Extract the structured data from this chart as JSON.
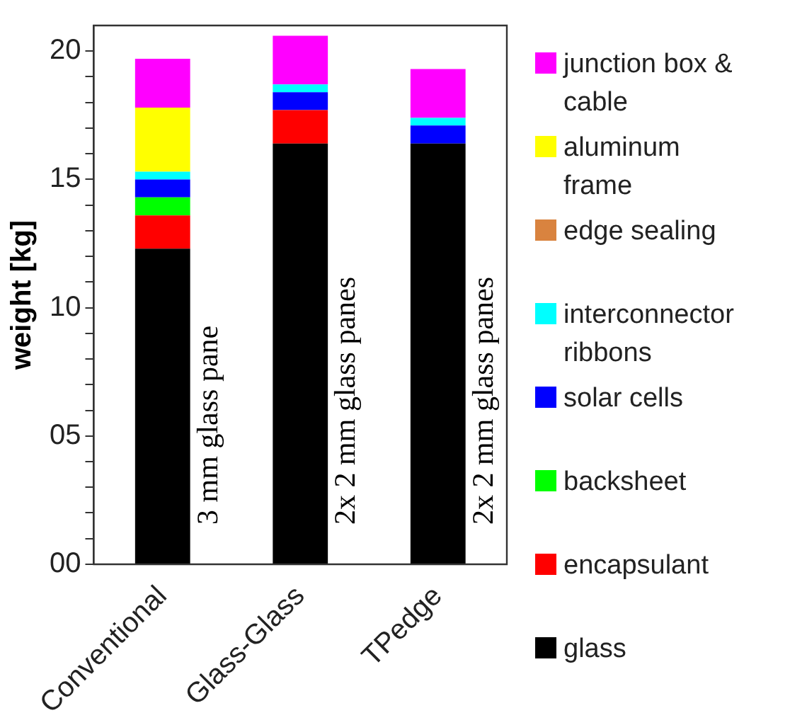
{
  "chart_data": {
    "type": "bar",
    "stacked": true,
    "ylabel": "weight [kg]",
    "categories": [
      "Conventional",
      "Glass-Glass",
      "TPedge"
    ],
    "series": [
      {
        "name": "glass",
        "color": "#000000",
        "values": [
          12.3,
          16.4,
          16.4
        ]
      },
      {
        "name": "encapsulant",
        "color": "#ff0000",
        "values": [
          1.3,
          1.3,
          0
        ]
      },
      {
        "name": "backsheet",
        "color": "#00ff00",
        "values": [
          0.7,
          0,
          0
        ]
      },
      {
        "name": "solar cells",
        "color": "#0000ff",
        "values": [
          0.7,
          0.7,
          0.7
        ]
      },
      {
        "name": "interconnector ribbons",
        "color": "#00ffff",
        "values": [
          0.3,
          0.3,
          0.3
        ]
      },
      {
        "name": "edge sealing",
        "color": "#d9833f",
        "values": [
          0,
          0,
          0
        ]
      },
      {
        "name": "aluminum frame",
        "color": "#ffff00",
        "values": [
          2.5,
          0,
          0
        ]
      },
      {
        "name": "junction box & cable",
        "color": "#ff00ff",
        "values": [
          1.9,
          1.9,
          1.9
        ]
      }
    ],
    "ylim": [
      0,
      21
    ],
    "yticks": [
      {
        "value": 0,
        "label": "00"
      },
      {
        "value": 1,
        "label": null
      },
      {
        "value": 2,
        "label": null
      },
      {
        "value": 3,
        "label": null
      },
      {
        "value": 4,
        "label": null
      },
      {
        "value": 5,
        "label": "05"
      },
      {
        "value": 6,
        "label": null
      },
      {
        "value": 7,
        "label": null
      },
      {
        "value": 8,
        "label": null
      },
      {
        "value": 9,
        "label": null
      },
      {
        "value": 10,
        "label": "10"
      },
      {
        "value": 11,
        "label": null
      },
      {
        "value": 12,
        "label": null
      },
      {
        "value": 13,
        "label": null
      },
      {
        "value": 14,
        "label": null
      },
      {
        "value": 15,
        "label": "15"
      },
      {
        "value": 16,
        "label": null
      },
      {
        "value": 17,
        "label": null
      },
      {
        "value": 18,
        "label": null
      },
      {
        "value": 19,
        "label": null
      },
      {
        "value": 20,
        "label": "20"
      }
    ],
    "annotations": [
      "3 mm glass pane",
      "2x 2 mm glass panes",
      "2x 2 mm glass panes"
    ],
    "grid": false,
    "legend": "right"
  }
}
